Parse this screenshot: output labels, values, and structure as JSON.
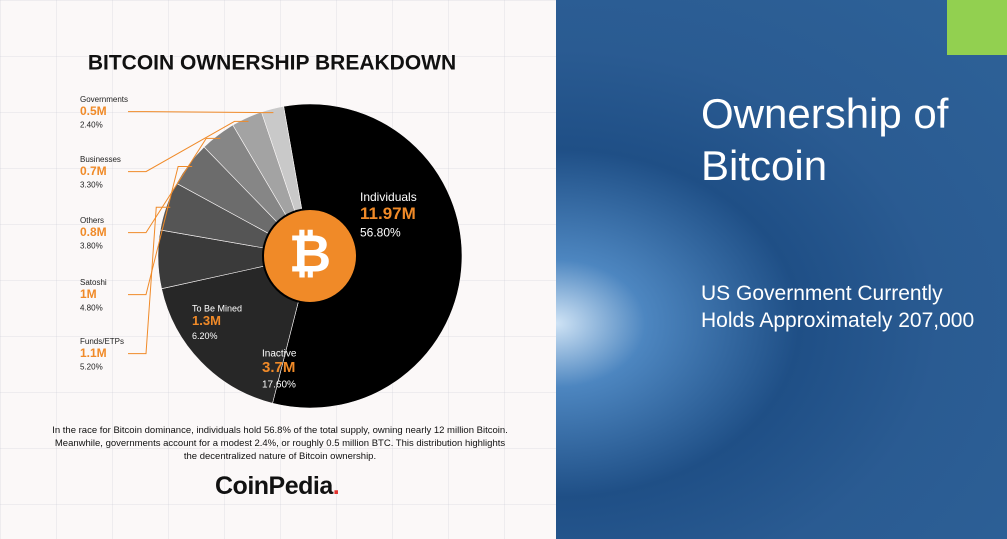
{
  "slide": {
    "title": "Ownership of Bitcoin",
    "body": "US Government Currently Holds Approximately 207,000"
  },
  "chart_data": {
    "type": "pie",
    "title": "BITCOIN OWNERSHIP BREAKDOWN",
    "categories": [
      "Individuals",
      "Inactive",
      "To Be Mined",
      "Funds/ETPs",
      "Satoshi",
      "Others",
      "Businesses",
      "Governments"
    ],
    "values": [
      56.8,
      17.6,
      6.2,
      5.2,
      4.8,
      3.8,
      3.3,
      2.4
    ],
    "value_labels": [
      "56.80%",
      "17.60%",
      "6.20%",
      "5.20%",
      "4.80%",
      "3.80%",
      "3.30%",
      "2.40%"
    ],
    "amount_labels": [
      "11.97M",
      "3.7M",
      "1.3M",
      "1.1M",
      "1M",
      "0.8M",
      "0.7M",
      "0.5M"
    ],
    "colors": [
      "#000000",
      "#272727",
      "#3a3a3a",
      "#555555",
      "#6c6c6c",
      "#868686",
      "#a3a3a3",
      "#c9c9c9"
    ],
    "center_symbol": "₿",
    "caption": "In the race for Bitcoin dominance, individuals hold 56.8% of the total supply, owning nearly 12 million Bitcoin. Meanwhile, governments account for a modest 2.4%, or roughly 0.5 million BTC. This distribution highlights the decentralized nature of Bitcoin ownership.",
    "brand": "CoinPedia",
    "brand_mark": "."
  }
}
